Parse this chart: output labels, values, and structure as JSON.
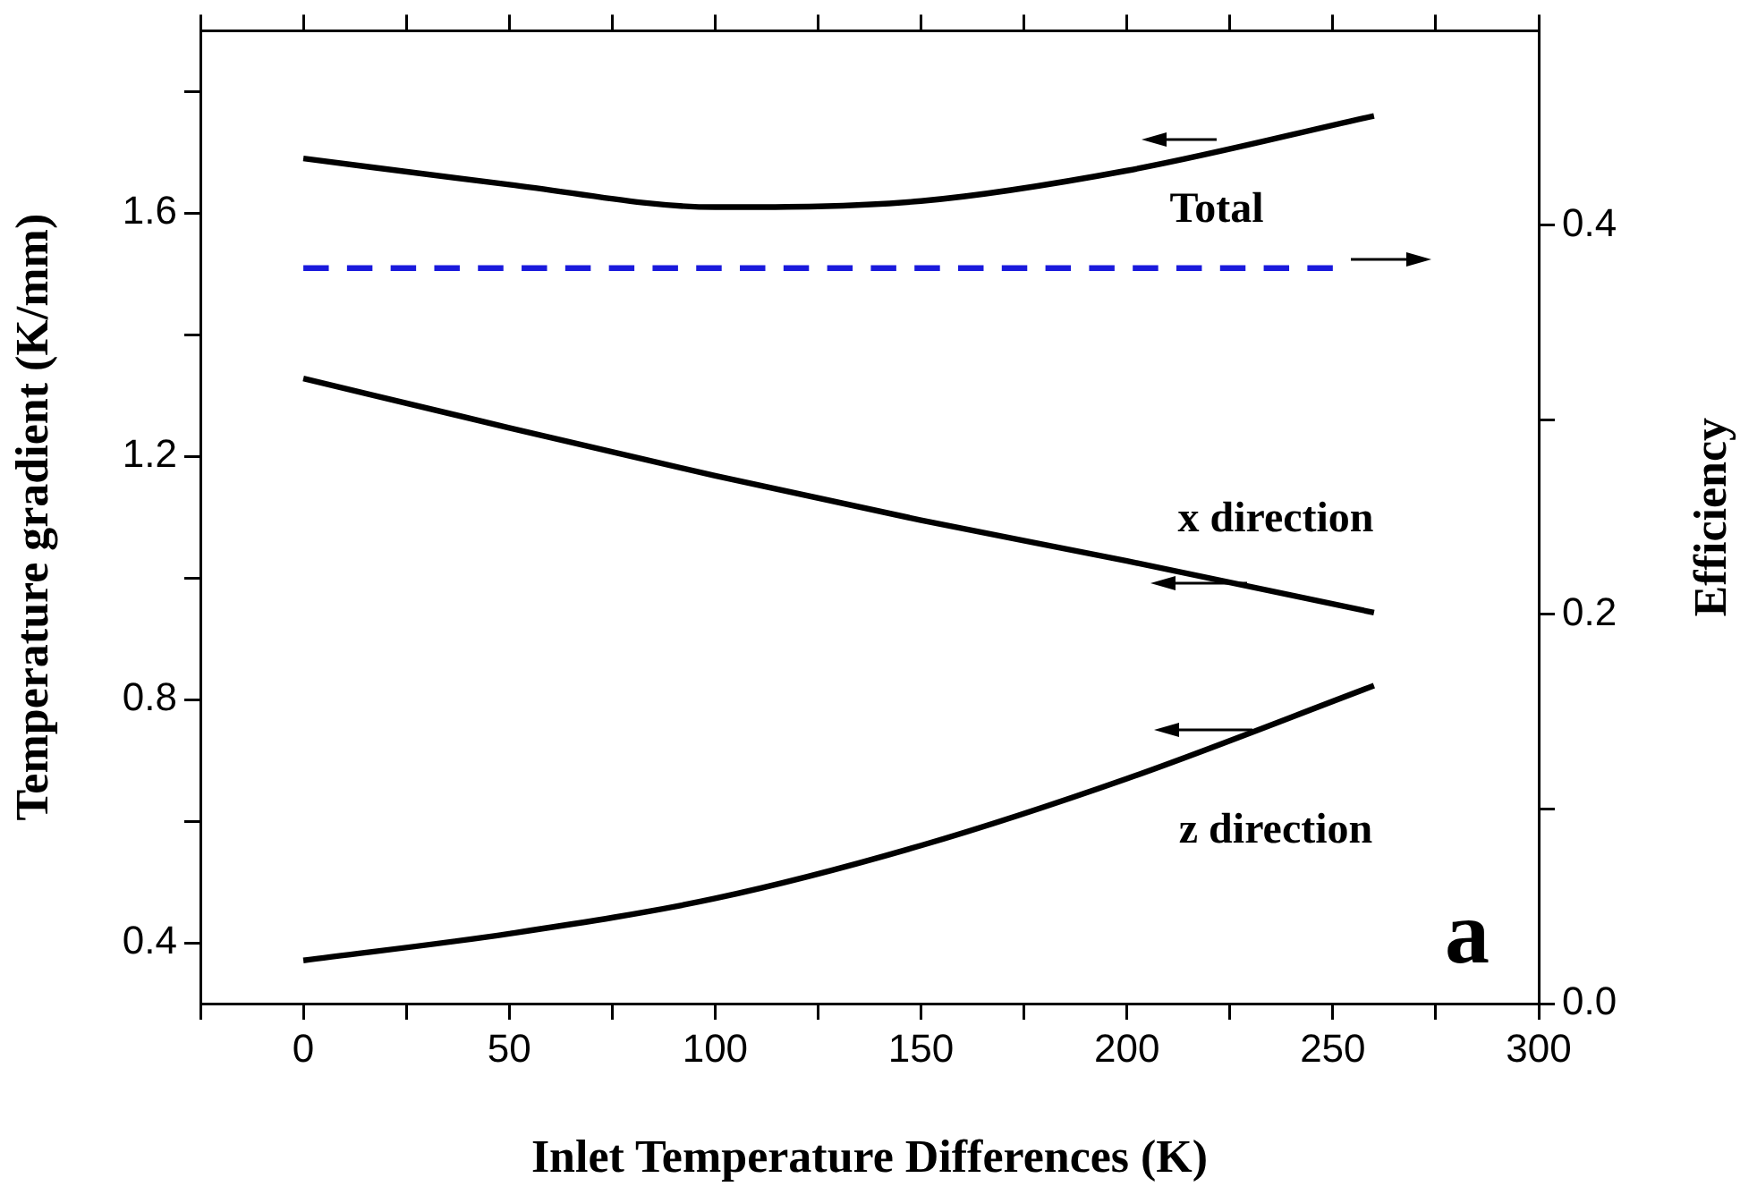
{
  "chart_data": {
    "type": "line",
    "xlabel": "Inlet Temperature Differences (K)",
    "ylabel": "Temperature gradient (K/mm)",
    "y2label": "Efficiency",
    "xlim": [
      -25,
      300
    ],
    "xticks": [
      {
        "value": -25,
        "label": null
      },
      0,
      {
        "value": 25,
        "label": null
      },
      50,
      {
        "value": 75,
        "label": null
      },
      100,
      {
        "value": 125,
        "label": null
      },
      150,
      {
        "value": 175,
        "label": null
      },
      200,
      {
        "value": 225,
        "label": null
      },
      250,
      {
        "value": 275,
        "label": null
      },
      300
    ],
    "ylim": [
      0.3,
      1.9
    ],
    "yticks": [
      0.4,
      {
        "value": 0.6,
        "label": null
      },
      0.8,
      {
        "value": 1.0,
        "label": null
      },
      1.2,
      {
        "value": 1.4,
        "label": null
      },
      1.6,
      {
        "value": 1.8,
        "label": null
      }
    ],
    "y2lim": [
      0,
      0.5
    ],
    "y2ticks": [
      "0.0",
      {
        "value": 0.1,
        "label": null
      },
      0.2,
      {
        "value": 0.3,
        "label": null
      },
      0.4
    ],
    "grid": false,
    "marker": "none",
    "legend": false,
    "series": [
      {
        "color": "#000000",
        "axis": "y",
        "line_style": "solid",
        "x": [
          0,
          50,
          100,
          150,
          200,
          260
        ],
        "values": [
          1.69,
          1.647,
          1.61,
          1.62,
          1.67,
          1.76
        ]
      },
      {
        "color": "#1a1adc",
        "axis": "y2",
        "line_style": "dashed",
        "x": [
          0,
          250
        ],
        "values": [
          0.378,
          0.378
        ]
      },
      {
        "color": "#000000",
        "axis": "y",
        "line_style": "solid",
        "x": [
          0,
          50,
          100,
          150,
          200,
          260
        ],
        "values": [
          1.328,
          1.247,
          1.168,
          1.095,
          1.028,
          0.943
        ]
      },
      {
        "color": "#000000",
        "axis": "y",
        "line_style": "solid",
        "x": [
          0,
          50,
          100,
          150,
          200,
          260
        ],
        "values": [
          0.371,
          0.415,
          0.473,
          0.56,
          0.67,
          0.823
        ]
      }
    ],
    "annotations": [
      "Total",
      "x direction",
      "z direction",
      "a"
    ]
  }
}
